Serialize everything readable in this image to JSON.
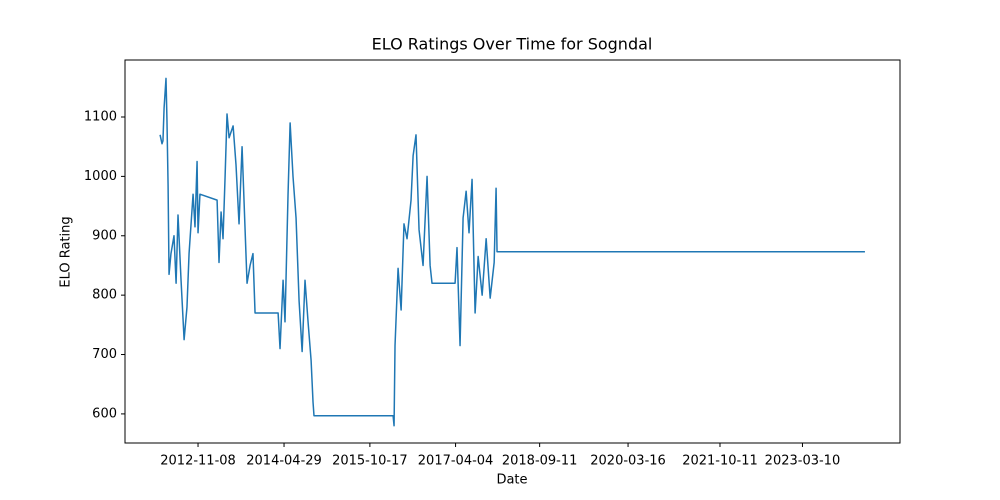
{
  "chart_data": {
    "type": "line",
    "title": "ELO Ratings Over Time for Sogndal",
    "x_label": "Date",
    "y_label": "ELO Rating",
    "x": [
      "2012-03-16",
      "2012-03-28",
      "2012-04-03",
      "2012-04-10",
      "2012-04-22",
      "2012-04-28",
      "2012-05-05",
      "2012-05-11",
      "2012-05-23",
      "2012-06-11",
      "2012-06-24",
      "2012-07-06",
      "2012-07-25",
      "2012-08-13",
      "2012-08-31",
      "2012-09-13",
      "2012-10-08",
      "2012-10-20",
      "2012-11-02",
      "2012-11-08",
      "2012-11-20",
      "2013-03-07",
      "2013-03-19",
      "2013-04-01",
      "2013-04-13",
      "2013-04-26",
      "2013-05-08",
      "2013-05-21",
      "2013-06-15",
      "2013-07-03",
      "2013-07-22",
      "2013-08-10",
      "2013-08-22",
      "2013-09-10",
      "2013-09-29",
      "2013-10-17",
      "2013-10-30",
      "2014-03-23",
      "2014-04-04",
      "2014-04-23",
      "2014-05-05",
      "2014-05-24",
      "2014-06-06",
      "2014-06-24",
      "2014-07-13",
      "2014-08-01",
      "2014-08-20",
      "2014-09-07",
      "2014-09-26",
      "2014-10-15",
      "2014-10-27",
      "2014-11-02",
      "2016-03-10",
      "2016-03-16",
      "2016-03-22",
      "2016-04-10",
      "2016-04-29",
      "2016-05-17",
      "2016-06-05",
      "2016-06-30",
      "2016-07-13",
      "2016-07-31",
      "2016-08-19",
      "2016-09-13",
      "2016-10-08",
      "2016-10-27",
      "2016-11-08",
      "2017-04-01",
      "2017-04-13",
      "2017-05-02",
      "2017-05-21",
      "2017-06-09",
      "2017-06-27",
      "2017-07-16",
      "2017-08-04",
      "2017-08-23",
      "2017-09-17",
      "2017-10-12",
      "2017-11-06",
      "2017-12-01",
      "2017-12-13",
      "2017-12-19",
      "2024-04-03"
    ],
    "series": [
      {
        "name": "Sogndal",
        "color": "#1f77b4",
        "values": [
          1070,
          1055,
          1060,
          1115,
          1165,
          1095,
          985,
          835,
          870,
          900,
          820,
          935,
          825,
          725,
          780,
          870,
          970,
          915,
          1025,
          905,
          970,
          960,
          855,
          940,
          895,
          1000,
          1105,
          1065,
          1085,
          1020,
          920,
          1050,
          960,
          820,
          850,
          870,
          770,
          770,
          710,
          825,
          755,
          970,
          1090,
          1000,
          930,
          790,
          705,
          825,
          755,
          690,
          620,
          597,
          597,
          580,
          715,
          845,
          775,
          920,
          895,
          960,
          1035,
          1070,
          910,
          850,
          1000,
          850,
          820,
          820,
          880,
          715,
          930,
          975,
          905,
          995,
          770,
          865,
          800,
          895,
          795,
          855,
          980,
          873,
          873
        ]
      }
    ],
    "xlim": [
      "2011-08-10",
      "2024-11-08"
    ],
    "xticks": [
      "2012-11-08",
      "2014-04-29",
      "2015-10-17",
      "2017-04-04",
      "2018-09-11",
      "2020-03-16",
      "2021-10-11",
      "2023-03-10"
    ],
    "ylim": [
      551,
      1196
    ],
    "yticks": [
      600,
      700,
      800,
      900,
      1000,
      1100
    ],
    "grid": false
  }
}
